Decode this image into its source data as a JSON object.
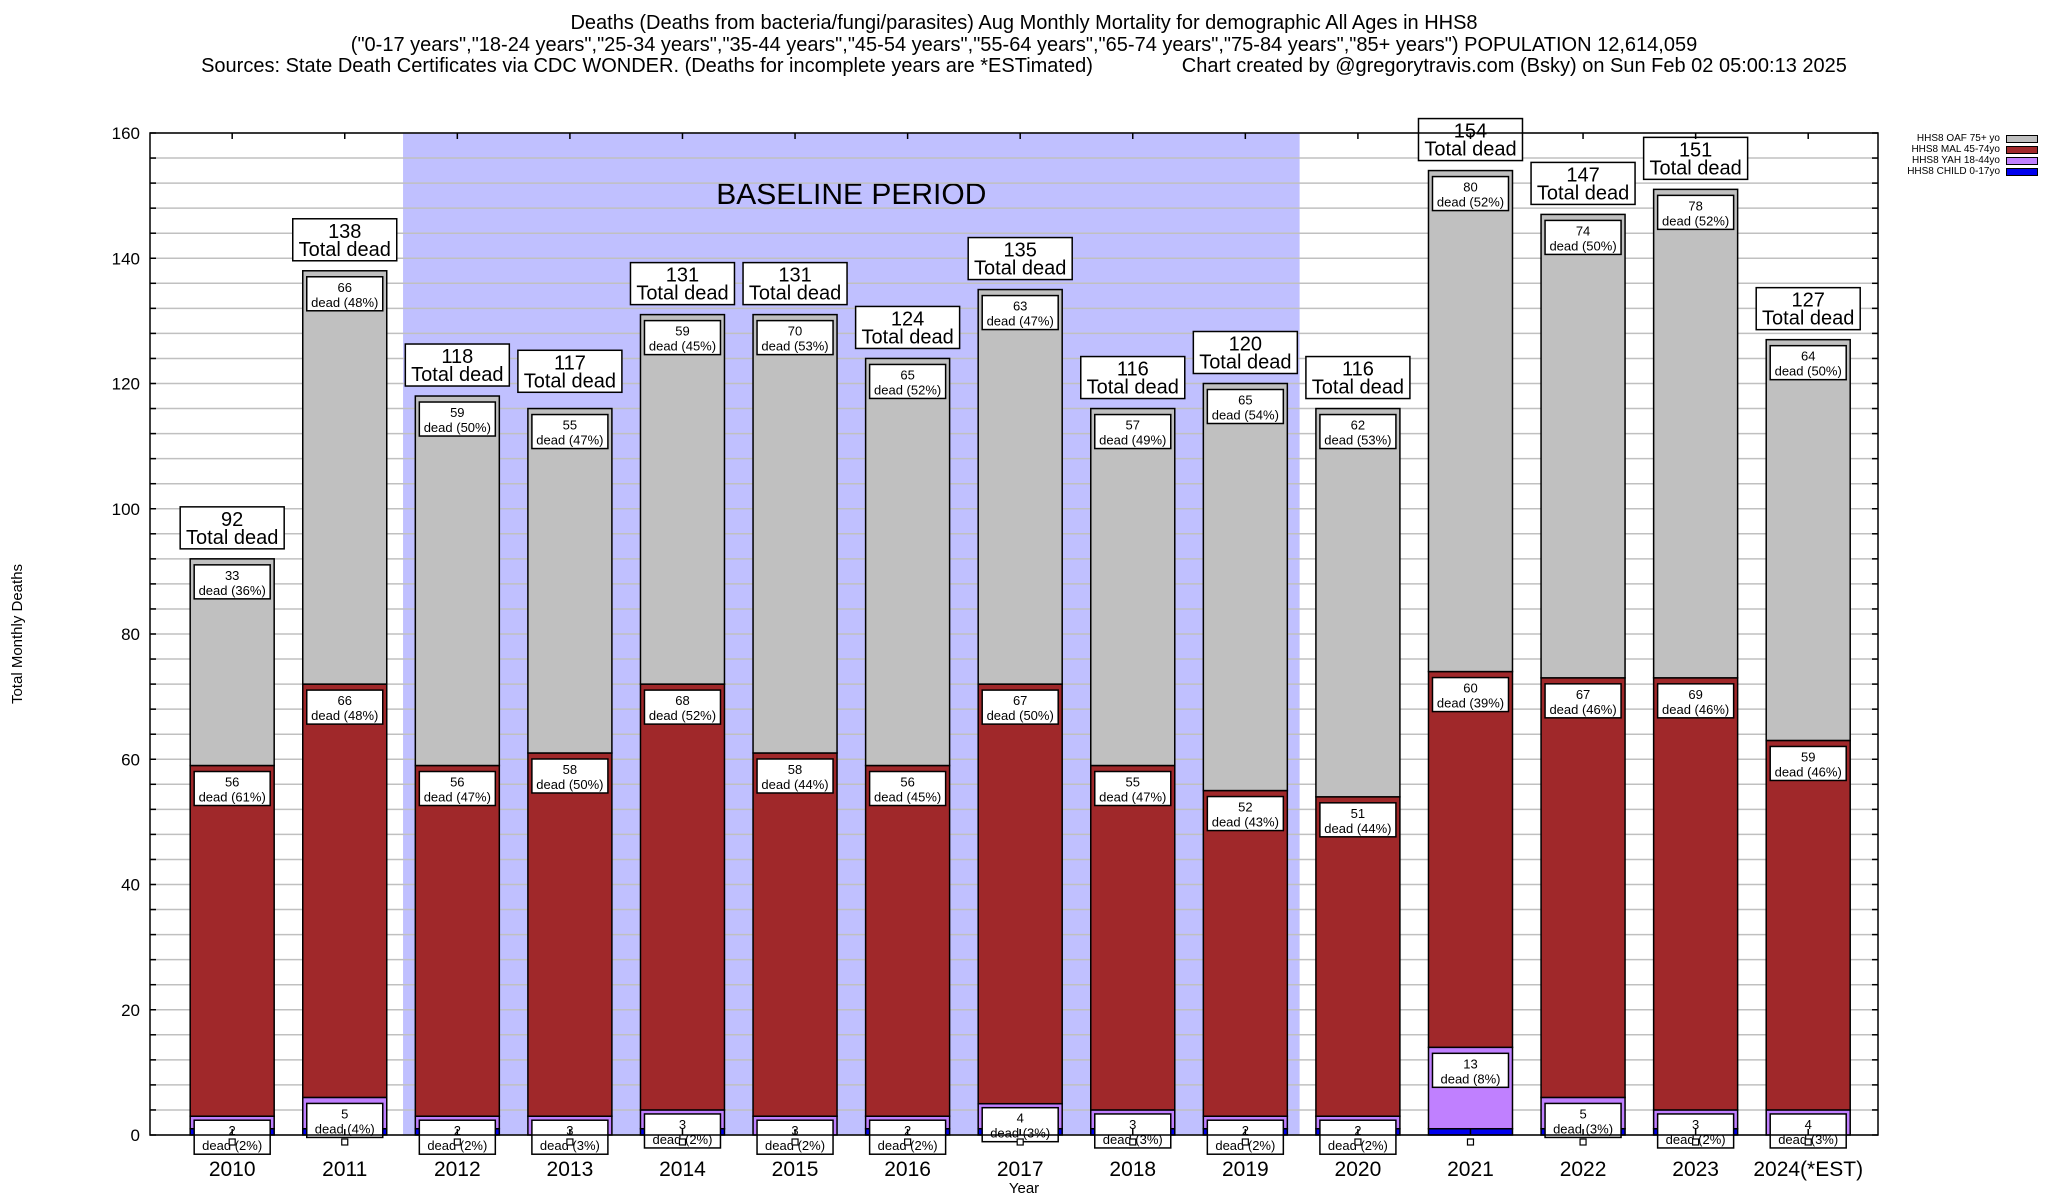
{
  "chart_data": {
    "type": "bar",
    "stacked": true,
    "title": "Deaths (Deaths from bacteria/fungi/parasites) Aug Monthly Mortality for demographic All Ages in HHS8",
    "subtitle": "(\"0-17 years\",\"18-24 years\",\"25-34 years\",\"35-44 years\",\"45-54 years\",\"55-64 years\",\"65-74 years\",\"75-84 years\",\"85+ years\") POPULATION 12,614,059",
    "sources": "Sources: State Death Certificates via CDC WONDER. (Deaths for incomplete years are *ESTimated)",
    "credit": "Chart created by @gregorytravis.com (Bsky) on Sun Feb 02 05:00:13 2025",
    "xlabel": "Year",
    "ylabel": "Total Monthly Deaths",
    "ylim": [
      0,
      160
    ],
    "yticks": [
      0,
      20,
      40,
      60,
      80,
      100,
      120,
      140,
      160
    ],
    "minor_grid_step": 4,
    "grid": true,
    "categories": [
      "2010",
      "2011",
      "2012",
      "2013",
      "2014",
      "2015",
      "2016",
      "2017",
      "2018",
      "2019",
      "2020",
      "2021",
      "2022",
      "2023",
      "2024(*EST)"
    ],
    "totals": [
      92,
      138,
      118,
      117,
      131,
      131,
      124,
      135,
      116,
      120,
      116,
      154,
      147,
      151,
      127
    ],
    "total_label_suffix": "Total dead",
    "segment_label_word": "dead",
    "series": [
      {
        "name": "HHS8 CHILD 0-17yo",
        "color": "#0000ee",
        "values": [
          1,
          1,
          1,
          0,
          1,
          0,
          1,
          1,
          1,
          1,
          1,
          1,
          1,
          1,
          0
        ],
        "pct": [
          null,
          null,
          null,
          null,
          null,
          null,
          null,
          null,
          null,
          null,
          null,
          null,
          null,
          null,
          null
        ]
      },
      {
        "name": "HHS8 YAH 18-44yo",
        "color": "#c080ff",
        "values": [
          2,
          5,
          2,
          3,
          3,
          3,
          2,
          4,
          3,
          2,
          2,
          13,
          5,
          3,
          4
        ],
        "pct": [
          2,
          4,
          2,
          3,
          2,
          2,
          2,
          3,
          3,
          2,
          2,
          8,
          3,
          2,
          3
        ]
      },
      {
        "name": "HHS8 MAL 45-74yo",
        "color": "#a0282a",
        "values": [
          56,
          66,
          56,
          58,
          68,
          58,
          56,
          67,
          55,
          52,
          51,
          60,
          67,
          69,
          59
        ],
        "pct": [
          61,
          48,
          47,
          50,
          52,
          44,
          45,
          50,
          47,
          43,
          44,
          39,
          46,
          46,
          46
        ]
      },
      {
        "name": "HHS8 OAF 75+ yo",
        "color": "#c0c0c0",
        "values": [
          33,
          66,
          59,
          55,
          59,
          70,
          65,
          63,
          57,
          65,
          62,
          80,
          74,
          78,
          64
        ],
        "pct": [
          36,
          48,
          50,
          47,
          45,
          53,
          52,
          47,
          49,
          54,
          53,
          52,
          50,
          52,
          50
        ]
      }
    ],
    "annotations": [
      {
        "text": "BASELINE PERIOD",
        "x_from": "2012",
        "x_to": "2019",
        "color": "#c0c0ff"
      }
    ],
    "legend_position": "top-right"
  }
}
